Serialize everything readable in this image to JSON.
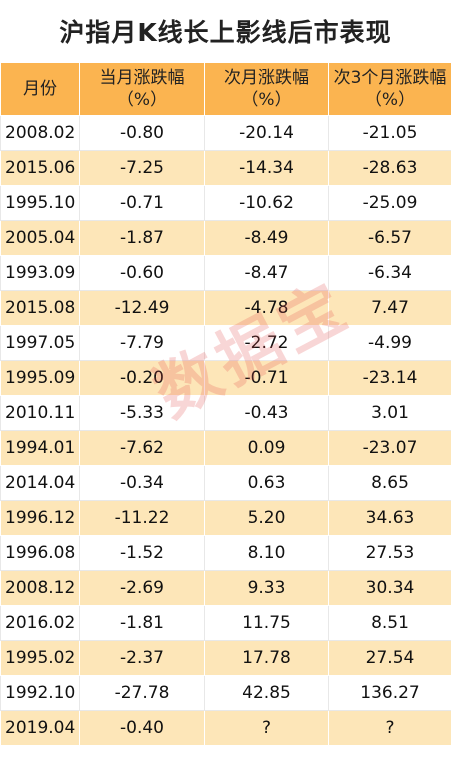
{
  "title": "沪指月K线长上影线后市表现",
  "headers": [
    {
      "label": "月份",
      "unit": ""
    },
    {
      "label": "当月涨跌幅",
      "unit": "（%）"
    },
    {
      "label": "次月涨跌幅",
      "unit": "（%）"
    },
    {
      "label": "次3个月涨跌幅",
      "unit": "（%）"
    }
  ],
  "rows": [
    [
      "2008.02",
      "-0.80",
      "-20.14",
      "-21.05"
    ],
    [
      "2015.06",
      "-7.25",
      "-14.34",
      "-28.63"
    ],
    [
      "1995.10",
      "-0.71",
      "-10.62",
      "-25.09"
    ],
    [
      "2005.04",
      "-1.87",
      "-8.49",
      "-6.57"
    ],
    [
      "1993.09",
      "-0.60",
      "-8.47",
      "-6.34"
    ],
    [
      "2015.08",
      "-12.49",
      "-4.78",
      "7.47"
    ],
    [
      "1997.05",
      "-7.79",
      "-2.72",
      "-4.99"
    ],
    [
      "1995.09",
      "-0.20",
      "-0.71",
      "-23.14"
    ],
    [
      "2010.11",
      "-5.33",
      "-0.43",
      "3.01"
    ],
    [
      "1994.01",
      "-7.62",
      "0.09",
      "-23.07"
    ],
    [
      "2014.04",
      "-0.34",
      "0.63",
      "8.65"
    ],
    [
      "1996.12",
      "-11.22",
      "5.20",
      "34.63"
    ],
    [
      "1996.08",
      "-1.52",
      "8.10",
      "27.53"
    ],
    [
      "2008.12",
      "-2.69",
      "9.33",
      "30.34"
    ],
    [
      "2016.02",
      "-1.81",
      "11.75",
      "8.51"
    ],
    [
      "1995.02",
      "-2.37",
      "17.78",
      "27.54"
    ],
    [
      "1992.10",
      "-27.78",
      "42.85",
      "136.27"
    ],
    [
      "2019.04",
      "-0.40",
      "?",
      "?"
    ]
  ],
  "watermark": "数据宝",
  "colors": {
    "header_bg": "#fbb450",
    "stripe_bg": "#fde6b8",
    "watermark": "#e34b4b"
  }
}
